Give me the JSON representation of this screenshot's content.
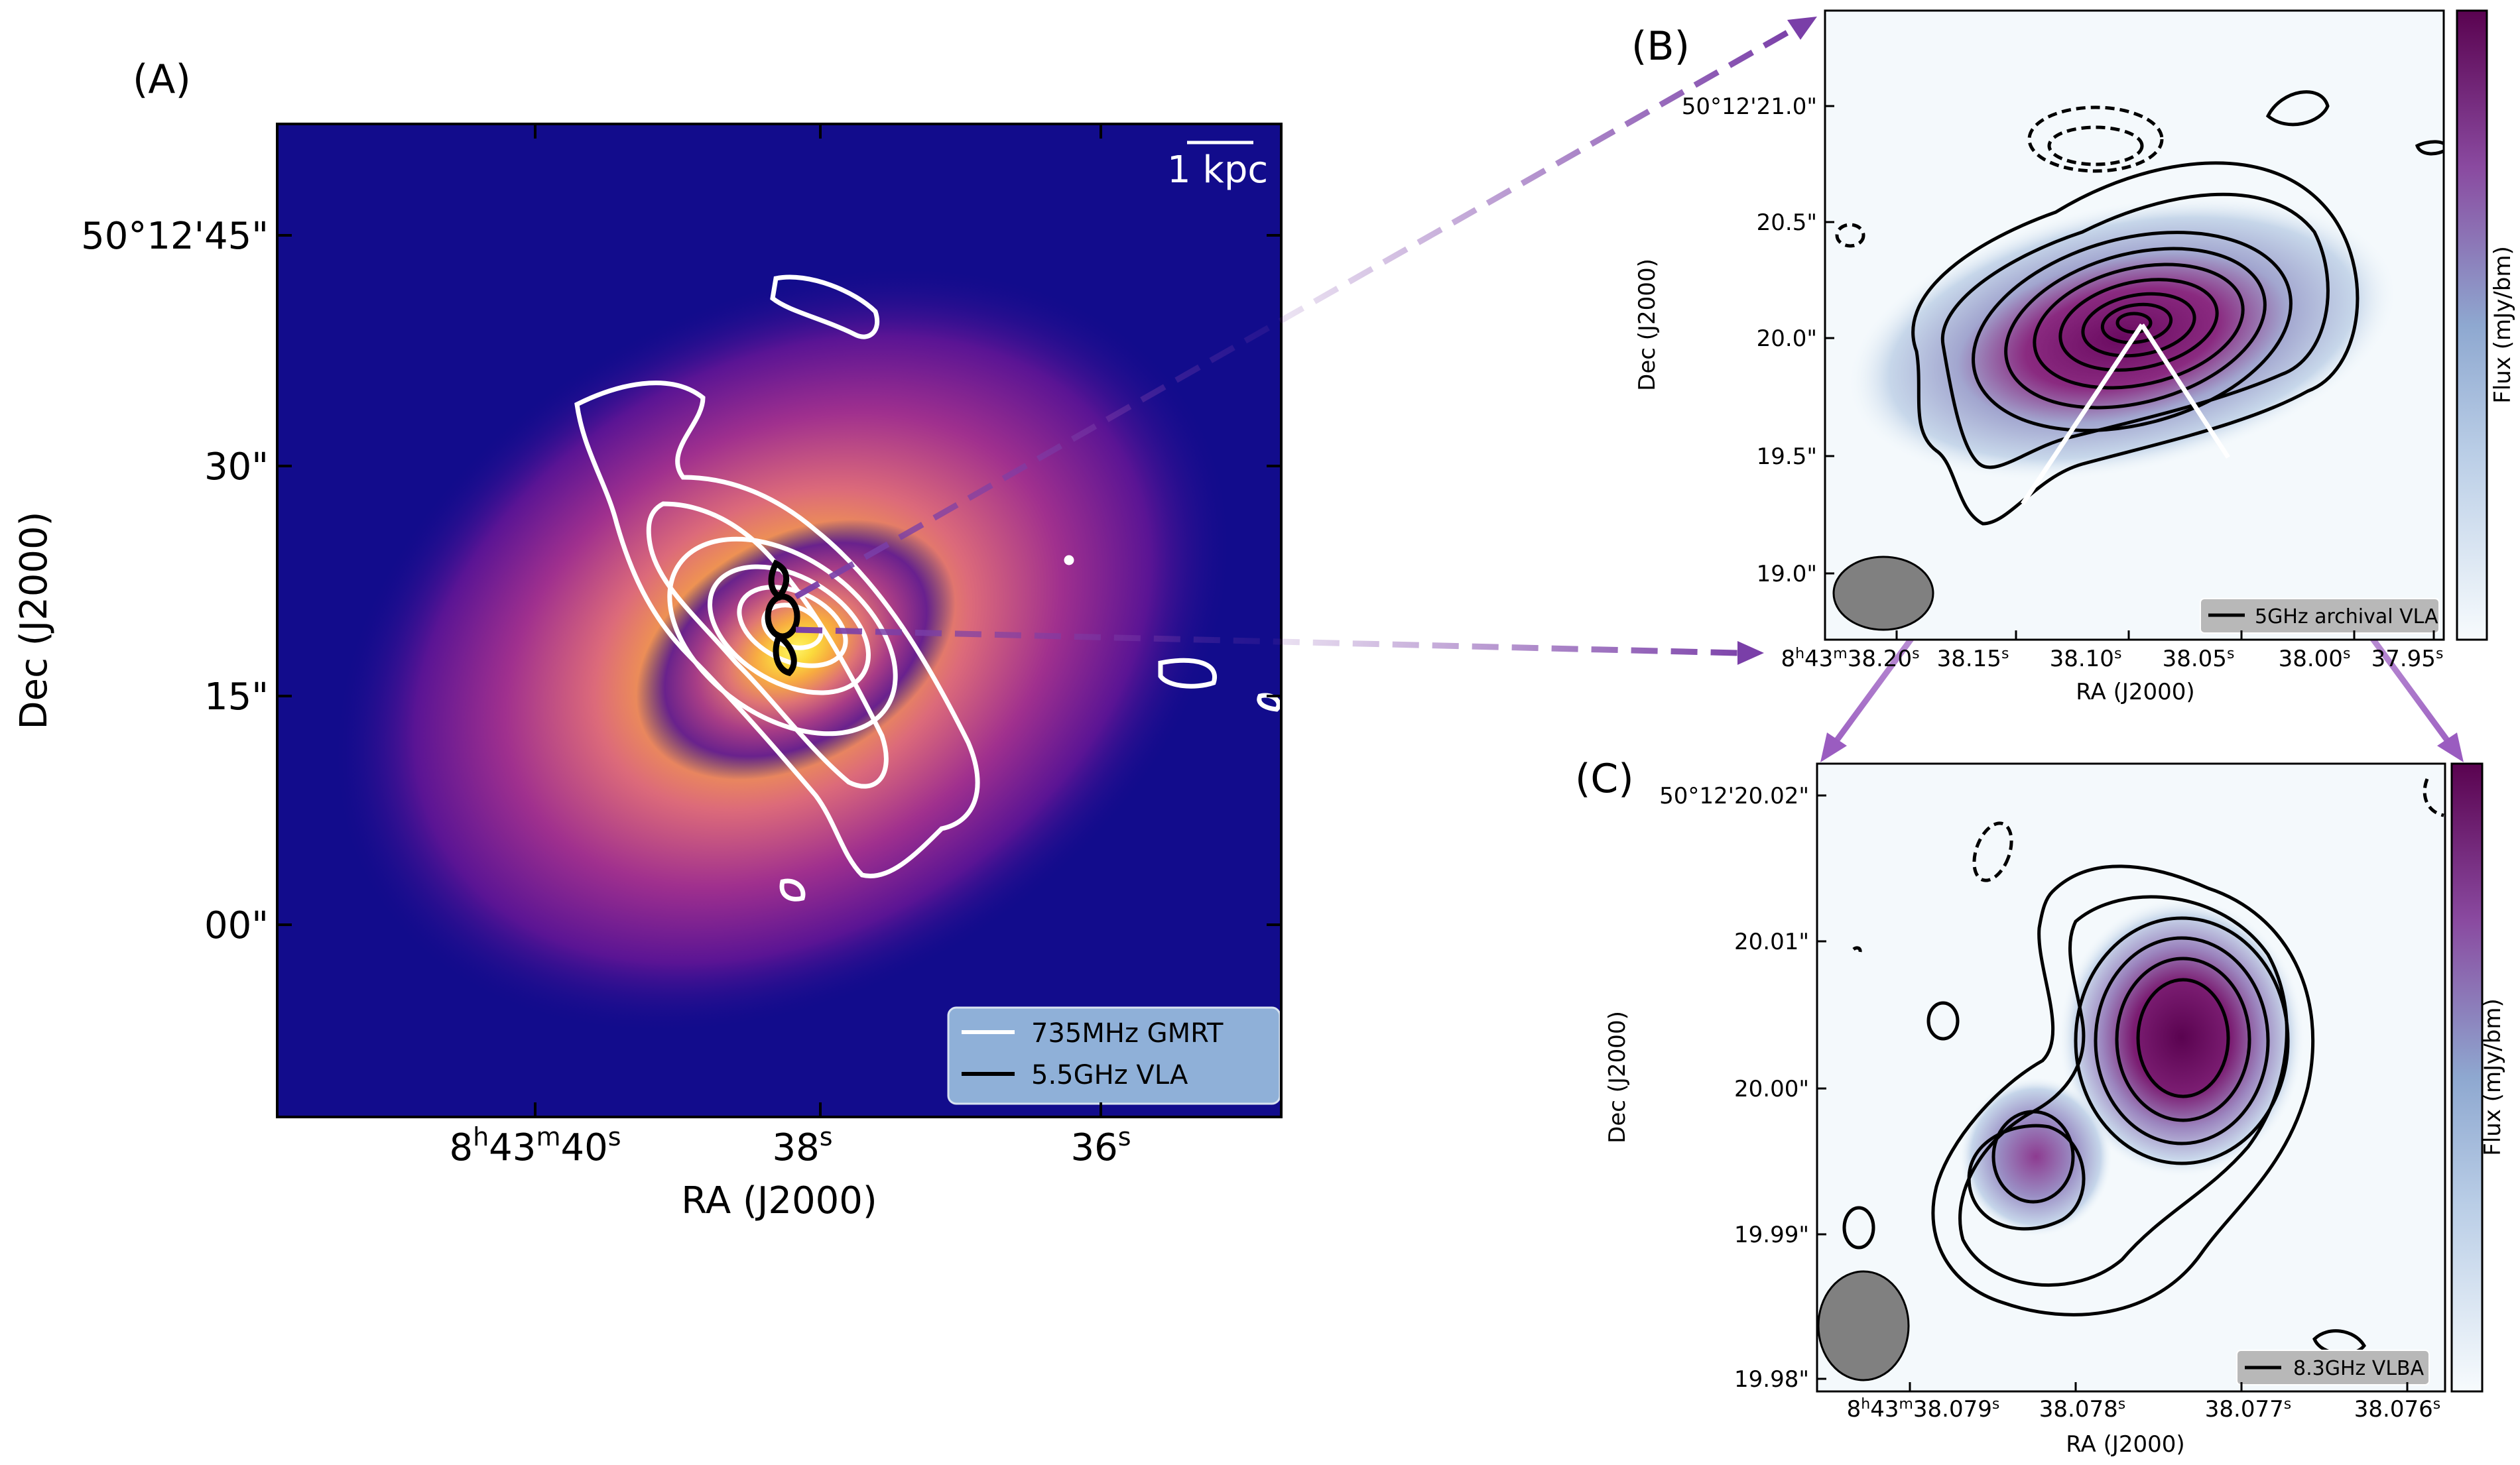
{
  "panels": {
    "a": {
      "label": "(A)",
      "scalebar": "1 kpc",
      "ylabel": "Dec (J2000)",
      "xlabel": "RA (J2000)",
      "yticks": [
        "50°12'45\"",
        "30\"",
        "15\"",
        "00\""
      ],
      "xticks": [
        {
          "base": "8",
          "sup1": "h",
          "mid": "43",
          "sup2": "m",
          "tail": "40",
          "sup3": "s"
        },
        {
          "base": "38",
          "sup3": "s"
        },
        {
          "base": "36",
          "sup3": "s"
        }
      ],
      "legend": [
        "735MHz GMRT",
        "5.5GHz VLA"
      ],
      "colors": {
        "bg": "#120c8c",
        "core": "#f9e94a",
        "gmrt": "#ffffff",
        "vla": "#000000",
        "legend_bg": "#8fb0d8"
      }
    },
    "b": {
      "label": "(B)",
      "ylabel": "Dec (J2000)",
      "xlabel": "RA (J2000)",
      "yticks": [
        "50°12'21.0\"",
        "20.5\"",
        "20.0\"",
        "19.5\"",
        "19.0\""
      ],
      "xticks": [
        {
          "base": "8",
          "sup1": "h",
          "mid": "43",
          "sup2": "m",
          "tail": "38.20",
          "sup3": "s"
        },
        {
          "base": "38.15",
          "sup3": "s"
        },
        {
          "base": "38.10",
          "sup3": "s"
        },
        {
          "base": "38.05",
          "sup3": "s"
        },
        {
          "base": "38.00",
          "sup3": "s"
        },
        {
          "base": "37.95",
          "sup3": "s"
        }
      ],
      "colorbar_label": "Flux (mJy/bm)",
      "legend": [
        "5GHz archival VLA"
      ]
    },
    "c": {
      "label": "(C)",
      "ylabel": "Dec (J2000)",
      "xlabel": "RA (J2000)",
      "yticks": [
        "50°12'20.02\"",
        "20.01\"",
        "20.00\"",
        "19.99\"",
        "19.98\""
      ],
      "xticks": [
        {
          "base": "8",
          "sup1": "h",
          "mid": "43",
          "sup2": "m",
          "tail": "38.079",
          "sup3": "s"
        },
        {
          "base": "38.078",
          "sup3": "s"
        },
        {
          "base": "38.077",
          "sup3": "s"
        },
        {
          "base": "38.076",
          "sup3": "s"
        }
      ],
      "colorbar_label": "Flux (mJy/bm)",
      "legend": [
        "8.3GHz VLBA"
      ]
    }
  },
  "colors": {
    "arrow": "#7a3fa8",
    "cmap_low": "#f4f9fc",
    "cmap_mid": "#8ea8d0",
    "cmap_high": "#5c0350"
  }
}
